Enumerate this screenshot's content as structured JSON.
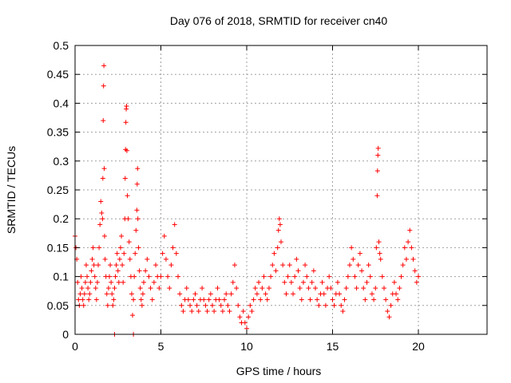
{
  "chart_data": {
    "type": "scatter",
    "title": "Day 076 of 2018, SRMTID for receiver cn40",
    "xlabel": "GPS time / hours",
    "ylabel": "SRMTID / TECUs",
    "xlim": [
      0,
      24
    ],
    "ylim": [
      0,
      0.5
    ],
    "xticks": [
      0,
      5,
      10,
      15,
      20
    ],
    "xtick_labels": [
      "0",
      "5",
      "10",
      "15",
      "20"
    ],
    "yticks": [
      0,
      0.05,
      0.1,
      0.15,
      0.2,
      0.25,
      0.3,
      0.35,
      0.4,
      0.45,
      0.5
    ],
    "ytick_labels": [
      "0",
      "0.05",
      "0.1",
      "0.15",
      "0.2",
      "0.25",
      "0.3",
      "0.35",
      "0.4",
      "0.45",
      "0.5"
    ],
    "grid": true,
    "marker": "+",
    "color": "#ff0000",
    "series": [
      {
        "name": "SRMTID",
        "points": [
          [
            0.0,
            0.17
          ],
          [
            0.05,
            0.15
          ],
          [
            0.1,
            0.13
          ],
          [
            0.15,
            0.09
          ],
          [
            0.2,
            0.06
          ],
          [
            0.25,
            0.05
          ],
          [
            0.3,
            0.07
          ],
          [
            0.35,
            0.1
          ],
          [
            0.4,
            0.08
          ],
          [
            0.45,
            0.06
          ],
          [
            0.5,
            0.05
          ],
          [
            0.55,
            0.07
          ],
          [
            0.6,
            0.09
          ],
          [
            0.65,
            0.12
          ],
          [
            0.7,
            0.1
          ],
          [
            0.75,
            0.08
          ],
          [
            0.8,
            0.06
          ],
          [
            0.85,
            0.07
          ],
          [
            0.9,
            0.09
          ],
          [
            0.95,
            0.11
          ],
          [
            1.0,
            0.13
          ],
          [
            1.05,
            0.15
          ],
          [
            1.1,
            0.12
          ],
          [
            1.15,
            0.1
          ],
          [
            1.2,
            0.08
          ],
          [
            1.25,
            0.06
          ],
          [
            1.3,
            0.09
          ],
          [
            1.35,
            0.12
          ],
          [
            1.4,
            0.15
          ],
          [
            1.45,
            0.19
          ],
          [
            1.5,
            0.23
          ],
          [
            1.55,
            0.21
          ],
          [
            1.6,
            0.2
          ],
          [
            1.62,
            0.27
          ],
          [
            1.64,
            0.37
          ],
          [
            1.66,
            0.43
          ],
          [
            1.68,
            0.465
          ],
          [
            1.7,
            0.287
          ],
          [
            1.72,
            0.17
          ],
          [
            1.75,
            0.13
          ],
          [
            1.8,
            0.1
          ],
          [
            1.85,
            0.07
          ],
          [
            1.9,
            0.05
          ],
          [
            1.95,
            0.08
          ],
          [
            2.0,
            0.1
          ],
          [
            2.05,
            0.12
          ],
          [
            2.1,
            0.09
          ],
          [
            2.15,
            0.07
          ],
          [
            2.2,
            0.05
          ],
          [
            2.25,
            0.06
          ],
          [
            2.3,
            0.08
          ],
          [
            2.35,
            0.1
          ],
          [
            2.4,
            0.12
          ],
          [
            2.45,
            0.14
          ],
          [
            2.5,
            0.11
          ],
          [
            2.55,
            0.09
          ],
          [
            2.6,
            0.13
          ],
          [
            2.65,
            0.15
          ],
          [
            2.7,
            0.17
          ],
          [
            2.75,
            0.12
          ],
          [
            2.8,
            0.09
          ],
          [
            2.85,
            0.14
          ],
          [
            2.9,
            0.2
          ],
          [
            2.92,
            0.27
          ],
          [
            2.94,
            0.32
          ],
          [
            2.96,
            0.367
          ],
          [
            2.98,
            0.39
          ],
          [
            3.0,
            0.395
          ],
          [
            3.02,
            0.318
          ],
          [
            3.05,
            0.24
          ],
          [
            3.1,
            0.2
          ],
          [
            3.15,
            0.16
          ],
          [
            3.2,
            0.13
          ],
          [
            3.25,
            0.1
          ],
          [
            3.3,
            0.07
          ],
          [
            3.35,
            0.033
          ],
          [
            3.4,
            0.06
          ],
          [
            3.45,
            0.1
          ],
          [
            3.5,
            0.14
          ],
          [
            3.55,
            0.18
          ],
          [
            3.6,
            0.215
          ],
          [
            3.62,
            0.26
          ],
          [
            3.64,
            0.287
          ],
          [
            3.66,
            0.2
          ],
          [
            3.7,
            0.15
          ],
          [
            3.75,
            0.11
          ],
          [
            3.8,
            0.08
          ],
          [
            3.85,
            0.06
          ],
          [
            3.9,
            0.05
          ],
          [
            3.95,
            0.07
          ],
          [
            4.0,
            0.09
          ],
          [
            4.1,
            0.11
          ],
          [
            4.2,
            0.13
          ],
          [
            4.3,
            0.1
          ],
          [
            4.4,
            0.08
          ],
          [
            4.5,
            0.06
          ],
          [
            4.6,
            0.09
          ],
          [
            4.7,
            0.12
          ],
          [
            4.8,
            0.1
          ],
          [
            4.9,
            0.08
          ],
          [
            5.0,
            0.1
          ],
          [
            5.1,
            0.14
          ],
          [
            5.2,
            0.17
          ],
          [
            5.3,
            0.13
          ],
          [
            5.4,
            0.1
          ],
          [
            5.5,
            0.08
          ],
          [
            5.6,
            0.12
          ],
          [
            5.7,
            0.15
          ],
          [
            5.8,
            0.19
          ],
          [
            5.9,
            0.14
          ],
          [
            6.0,
            0.1
          ],
          [
            6.1,
            0.07
          ],
          [
            6.2,
            0.05
          ],
          [
            6.3,
            0.04
          ],
          [
            6.4,
            0.06
          ],
          [
            6.5,
            0.08
          ],
          [
            6.6,
            0.06
          ],
          [
            6.7,
            0.05
          ],
          [
            6.8,
            0.04
          ],
          [
            6.9,
            0.06
          ],
          [
            7.0,
            0.07
          ],
          [
            7.1,
            0.05
          ],
          [
            7.2,
            0.04
          ],
          [
            7.3,
            0.06
          ],
          [
            7.4,
            0.08
          ],
          [
            7.5,
            0.06
          ],
          [
            7.6,
            0.05
          ],
          [
            7.7,
            0.04
          ],
          [
            7.8,
            0.06
          ],
          [
            7.9,
            0.07
          ],
          [
            8.0,
            0.05
          ],
          [
            8.1,
            0.04
          ],
          [
            8.2,
            0.06
          ],
          [
            8.3,
            0.08
          ],
          [
            8.4,
            0.06
          ],
          [
            8.5,
            0.05
          ],
          [
            8.6,
            0.04
          ],
          [
            8.7,
            0.06
          ],
          [
            8.8,
            0.07
          ],
          [
            8.9,
            0.05
          ],
          [
            9.0,
            0.04
          ],
          [
            9.1,
            0.07
          ],
          [
            9.2,
            0.09
          ],
          [
            9.3,
            0.12
          ],
          [
            9.4,
            0.08
          ],
          [
            9.5,
            0.05
          ],
          [
            9.6,
            0.03
          ],
          [
            9.7,
            0.02
          ],
          [
            9.8,
            0.04
          ],
          [
            9.9,
            0.02
          ],
          [
            10.0,
            0.01
          ],
          [
            10.1,
            0.03
          ],
          [
            10.2,
            0.05
          ],
          [
            10.3,
            0.04
          ],
          [
            10.4,
            0.06
          ],
          [
            10.5,
            0.08
          ],
          [
            10.6,
            0.07
          ],
          [
            10.7,
            0.09
          ],
          [
            10.8,
            0.06
          ],
          [
            10.9,
            0.08
          ],
          [
            11.0,
            0.1
          ],
          [
            11.1,
            0.07
          ],
          [
            11.2,
            0.06
          ],
          [
            11.3,
            0.08
          ],
          [
            11.4,
            0.1
          ],
          [
            11.5,
            0.12
          ],
          [
            11.6,
            0.14
          ],
          [
            11.7,
            0.11
          ],
          [
            11.8,
            0.15
          ],
          [
            11.85,
            0.18
          ],
          [
            11.9,
            0.2
          ],
          [
            11.95,
            0.19
          ],
          [
            12.0,
            0.16
          ],
          [
            12.1,
            0.12
          ],
          [
            12.2,
            0.09
          ],
          [
            12.3,
            0.07
          ],
          [
            12.4,
            0.1
          ],
          [
            12.5,
            0.12
          ],
          [
            12.6,
            0.09
          ],
          [
            12.7,
            0.07
          ],
          [
            12.8,
            0.1
          ],
          [
            12.9,
            0.13
          ],
          [
            13.0,
            0.11
          ],
          [
            13.1,
            0.08
          ],
          [
            13.2,
            0.06
          ],
          [
            13.3,
            0.09
          ],
          [
            13.4,
            0.12
          ],
          [
            13.5,
            0.1
          ],
          [
            13.6,
            0.08
          ],
          [
            13.7,
            0.06
          ],
          [
            13.8,
            0.09
          ],
          [
            13.9,
            0.11
          ],
          [
            14.0,
            0.08
          ],
          [
            14.1,
            0.06
          ],
          [
            14.2,
            0.05
          ],
          [
            14.3,
            0.07
          ],
          [
            14.4,
            0.09
          ],
          [
            14.5,
            0.07
          ],
          [
            14.6,
            0.05
          ],
          [
            14.7,
            0.08
          ],
          [
            14.8,
            0.1
          ],
          [
            14.9,
            0.08
          ],
          [
            15.0,
            0.06
          ],
          [
            15.1,
            0.05
          ],
          [
            15.2,
            0.07
          ],
          [
            15.3,
            0.09
          ],
          [
            15.4,
            0.07
          ],
          [
            15.5,
            0.05
          ],
          [
            15.6,
            0.04
          ],
          [
            15.7,
            0.06
          ],
          [
            15.8,
            0.08
          ],
          [
            15.9,
            0.1
          ],
          [
            16.0,
            0.12
          ],
          [
            16.1,
            0.15
          ],
          [
            16.2,
            0.13
          ],
          [
            16.3,
            0.1
          ],
          [
            16.4,
            0.08
          ],
          [
            16.5,
            0.12
          ],
          [
            16.6,
            0.14
          ],
          [
            16.7,
            0.11
          ],
          [
            16.8,
            0.08
          ],
          [
            16.9,
            0.06
          ],
          [
            17.0,
            0.09
          ],
          [
            17.1,
            0.12
          ],
          [
            17.2,
            0.1
          ],
          [
            17.3,
            0.07
          ],
          [
            17.4,
            0.06
          ],
          [
            17.5,
            0.08
          ],
          [
            17.55,
            0.15
          ],
          [
            17.6,
            0.24
          ],
          [
            17.62,
            0.283
          ],
          [
            17.64,
            0.31
          ],
          [
            17.66,
            0.322
          ],
          [
            17.7,
            0.16
          ],
          [
            17.75,
            0.14
          ],
          [
            17.8,
            0.13
          ],
          [
            17.9,
            0.1
          ],
          [
            18.0,
            0.08
          ],
          [
            18.1,
            0.06
          ],
          [
            18.2,
            0.04
          ],
          [
            18.3,
            0.03
          ],
          [
            18.4,
            0.05
          ],
          [
            18.5,
            0.07
          ],
          [
            18.6,
            0.09
          ],
          [
            18.7,
            0.07
          ],
          [
            18.8,
            0.06
          ],
          [
            18.9,
            0.08
          ],
          [
            19.0,
            0.1
          ],
          [
            19.1,
            0.12
          ],
          [
            19.2,
            0.15
          ],
          [
            19.3,
            0.13
          ],
          [
            19.4,
            0.16
          ],
          [
            19.5,
            0.18
          ],
          [
            19.6,
            0.15
          ],
          [
            19.7,
            0.13
          ],
          [
            19.8,
            0.11
          ],
          [
            19.9,
            0.09
          ],
          [
            20.0,
            0.1
          ],
          [
            2.3,
            0.0
          ],
          [
            3.4,
            0.0
          ]
        ]
      }
    ]
  }
}
